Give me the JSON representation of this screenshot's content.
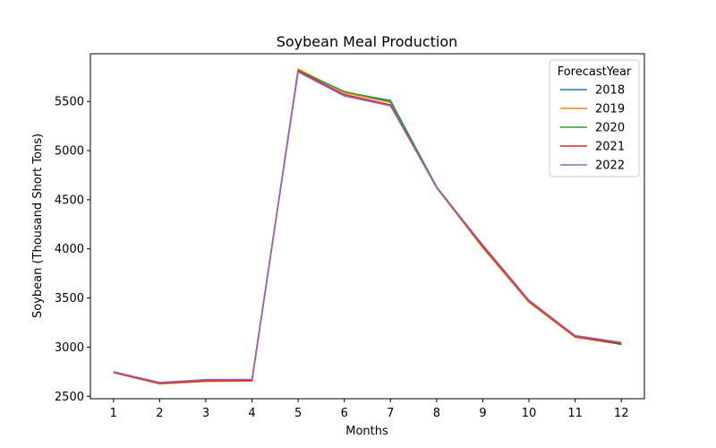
{
  "chart_data": {
    "type": "line",
    "title": "Soybean Meal Production",
    "xlabel": "Months",
    "ylabel": "Soybean (Thousand Short Tons)",
    "x": [
      1,
      2,
      3,
      4,
      5,
      6,
      7,
      8,
      9,
      10,
      11,
      12
    ],
    "xlim": [
      0.5,
      12.5
    ],
    "ylim": [
      2475,
      5985
    ],
    "yticks": [
      2500,
      3000,
      3500,
      4000,
      4500,
      5000,
      5500
    ],
    "legend": {
      "title": "ForecastYear",
      "placement": "top-right"
    },
    "series": [
      {
        "name": "2018",
        "color": "#1f77b4",
        "values": [
          2745,
          2635,
          2660,
          2662,
          5820,
          5595,
          5510,
          4630,
          4035,
          3475,
          3115,
          3045
        ]
      },
      {
        "name": "2019",
        "color": "#ff7f0e",
        "values": [
          2740,
          2625,
          2650,
          2655,
          5830,
          5590,
          5490,
          4620,
          4010,
          3455,
          3100,
          3030
        ]
      },
      {
        "name": "2020",
        "color": "#2ca02c",
        "values": [
          2748,
          2638,
          2665,
          2668,
          5815,
          5600,
          5500,
          4628,
          4030,
          3470,
          3112,
          3040
        ]
      },
      {
        "name": "2021",
        "color": "#d62728",
        "values": [
          2742,
          2632,
          2658,
          2660,
          5810,
          5570,
          5465,
          4625,
          4025,
          3468,
          3108,
          3028
        ]
      },
      {
        "name": "2022",
        "color": "#9467bd",
        "values": [
          2750,
          2640,
          2670,
          2672,
          5800,
          5555,
          5455,
          4622,
          4040,
          3478,
          3118,
          3048
        ]
      }
    ]
  }
}
